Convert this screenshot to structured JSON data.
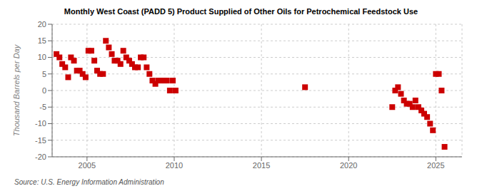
{
  "chart_data": {
    "type": "scatter",
    "title": "Monthly West Coast (PADD 5) Product Supplied of Other Oils for Petrochemical Feedstock Use",
    "ylabel": "Thousand Barrels per Day",
    "annotations": [
      "Source: U.S. Energy Information Administration"
    ],
    "x": [
      2003.25,
      2003.42,
      2003.58,
      2003.75,
      2003.92,
      2004.08,
      2004.25,
      2004.42,
      2004.58,
      2004.75,
      2004.92,
      2005.08,
      2005.25,
      2005.42,
      2005.58,
      2005.75,
      2005.92,
      2006.08,
      2006.25,
      2006.42,
      2006.58,
      2006.75,
      2006.92,
      2007.08,
      2007.25,
      2007.42,
      2007.58,
      2007.75,
      2007.92,
      2008.08,
      2008.25,
      2008.42,
      2008.58,
      2008.75,
      2008.92,
      2009.08,
      2009.25,
      2009.42,
      2009.58,
      2009.75,
      2009.92,
      2010.08,
      2017.5,
      2022.5,
      2022.67,
      2022.83,
      2023.0,
      2023.17,
      2023.33,
      2023.5,
      2023.67,
      2023.83,
      2024.0,
      2024.17,
      2024.33,
      2024.5,
      2024.67,
      2024.83,
      2025.0,
      2025.17,
      2025.33,
      2025.5
    ],
    "values": [
      11,
      10,
      8,
      7,
      4,
      10,
      9,
      6,
      6,
      5,
      4,
      12,
      12,
      9,
      6,
      5,
      5,
      15,
      13,
      11,
      9,
      9,
      8,
      12,
      10,
      9,
      8,
      7,
      7,
      10,
      10,
      7,
      5,
      3,
      2,
      3,
      3,
      3,
      3,
      0,
      3,
      0,
      1,
      -5,
      0,
      1,
      -1,
      -3,
      -4,
      -4,
      -5,
      -3,
      -5,
      -6,
      -7,
      -8,
      -10,
      -12,
      5,
      5,
      0,
      -17
    ],
    "color": "#cc0000",
    "marker": "square",
    "xlim": [
      2003.0,
      2026.5
    ],
    "xticks": [
      2005,
      2010,
      2015,
      2020,
      2025
    ],
    "ylim": [
      -20,
      20
    ],
    "yticks": [
      -20,
      -15,
      -10,
      -5,
      0,
      5,
      10,
      15,
      20
    ],
    "grid": true
  }
}
